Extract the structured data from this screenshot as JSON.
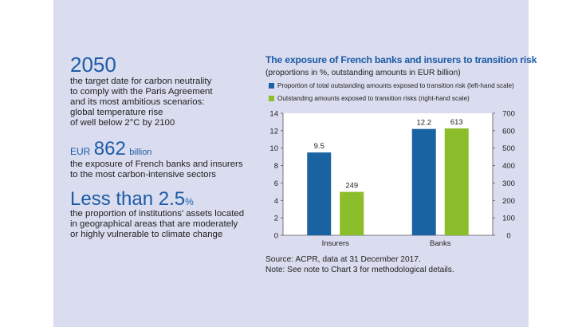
{
  "stats": {
    "s1": {
      "value": "2050",
      "text": [
        "the target date for carbon neutrality",
        "to comply with the Paris Agreement",
        "and its most ambitious scenarios:",
        "global temperature rise",
        "of well below 2°C by 2100"
      ]
    },
    "s2": {
      "prefix": "EUR",
      "value": "862",
      "suffix": "billion",
      "text": [
        "the exposure of French banks and insurers",
        "to the most carbon-intensive sectors"
      ]
    },
    "s3": {
      "value": "Less than 2.5",
      "suffix": "%",
      "text": [
        "the proportion of institutions’ assets located",
        "in geographical areas that are moderately",
        "or highly vulnerable to climate change"
      ]
    }
  },
  "colors": {
    "panel": "#dadcef",
    "accent": "#1c5ba6",
    "series1": "#1a63a2",
    "series2": "#8cbd2a"
  },
  "chart_data": {
    "type": "bar",
    "title": "The exposure of French banks and insurers to transition risk",
    "subtitle": "(proportions in %, outstanding amounts in EUR billion)",
    "categories": [
      "Insurers",
      "Banks"
    ],
    "series": [
      {
        "name": "Proportion of total outstanding amounts exposed to transition risk (left-hand scale)",
        "values": [
          9.5,
          12.2
        ],
        "labels": [
          "9.5",
          "12.2"
        ],
        "axis": "left",
        "color": "#1a63a2"
      },
      {
        "name": "Outstanding amounts exposed to transition risks (right-hand scale)",
        "values": [
          249,
          613
        ],
        "labels": [
          "249",
          "613"
        ],
        "axis": "right",
        "color": "#8cbd2a"
      }
    ],
    "ylim_left": [
      0,
      14
    ],
    "yticks_left": [
      "0",
      "2",
      "4",
      "6",
      "8",
      "10",
      "12",
      "14"
    ],
    "ylim_right": [
      0,
      700
    ],
    "yticks_right": [
      "0",
      "100",
      "200",
      "300",
      "400",
      "500",
      "600",
      "700"
    ],
    "legend_position": "top",
    "grid": false
  },
  "notes": {
    "source": "Source: ACPR, data at 31 December 2017.",
    "note": "Note: See note to Chart 3 for methodological details."
  }
}
